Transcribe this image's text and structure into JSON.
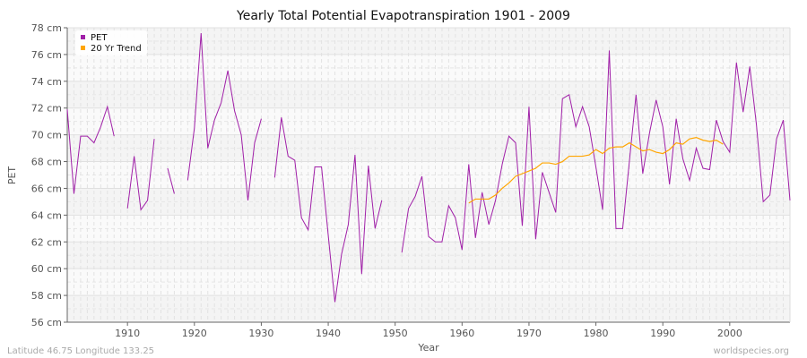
{
  "chart_data": {
    "type": "line",
    "title": "Yearly Total Potential Evapotranspiration 1901 - 2009",
    "xlabel": "Year",
    "ylabel": "PET",
    "ylim": [
      56,
      78
    ],
    "xlim": [
      1901,
      2009
    ],
    "y_ticks": [
      "56 cm",
      "58 cm",
      "60 cm",
      "62 cm",
      "64 cm",
      "66 cm",
      "68 cm",
      "70 cm",
      "72 cm",
      "74 cm",
      "76 cm",
      "78 cm"
    ],
    "x_ticks": [
      "1910",
      "1920",
      "1930",
      "1940",
      "1950",
      "1960",
      "1970",
      "1980",
      "1990",
      "2000"
    ],
    "grid": true,
    "legend_position": "top-left",
    "series": [
      {
        "name": "PET",
        "color": "#a020a8",
        "start_year": 1901,
        "values": [
          71.9,
          65.6,
          69.9,
          69.9,
          69.4,
          70.6,
          72.1,
          69.9,
          null,
          64.5,
          68.4,
          64.4,
          65.1,
          69.7,
          null,
          67.5,
          65.6,
          null,
          66.6,
          70.5,
          77.6,
          69.0,
          71.1,
          72.4,
          74.8,
          71.8,
          70.0,
          65.1,
          69.4,
          71.2,
          null,
          66.8,
          71.3,
          68.4,
          68.1,
          63.8,
          62.9,
          67.6,
          67.6,
          62.5,
          57.5,
          61.1,
          63.3,
          68.5,
          59.6,
          67.7,
          63.0,
          65.1,
          null,
          null,
          61.2,
          64.5,
          65.4,
          66.9,
          62.4,
          62.0,
          62.0,
          64.7,
          63.8,
          61.4,
          67.8,
          62.3,
          65.7,
          63.3,
          65.1,
          67.8,
          69.9,
          69.4,
          63.2,
          72.1,
          62.2,
          67.2,
          65.7,
          64.2,
          72.7,
          73.0,
          70.6,
          72.1,
          70.6,
          67.6,
          64.4,
          76.3,
          63.0,
          63.0,
          68.0,
          73.0,
          67.1,
          70.1,
          72.6,
          70.6,
          66.3,
          71.2,
          68.2,
          66.6,
          69.0,
          67.5,
          67.4,
          71.1,
          69.5,
          68.7,
          75.4,
          71.7,
          75.1,
          70.7,
          65.0,
          65.5,
          69.7,
          71.1,
          65.1
        ]
      },
      {
        "name": "20 Yr Trend",
        "color": "#ffa500",
        "start_year": 1961,
        "values": [
          64.9,
          65.2,
          65.2,
          65.2,
          65.5,
          66.0,
          66.4,
          66.9,
          67.1,
          67.3,
          67.5,
          67.9,
          67.9,
          67.8,
          68.0,
          68.4,
          68.4,
          68.4,
          68.5,
          68.9,
          68.6,
          69.0,
          69.1,
          69.1,
          69.4,
          69.1,
          68.8,
          68.9,
          68.7,
          68.6,
          68.9,
          69.4,
          69.3,
          69.7,
          69.8,
          69.6,
          69.5,
          69.6,
          69.3
        ]
      }
    ]
  },
  "footer": {
    "location": "Latitude 46.75 Longitude 133.25",
    "source": "worldspecies.org"
  }
}
